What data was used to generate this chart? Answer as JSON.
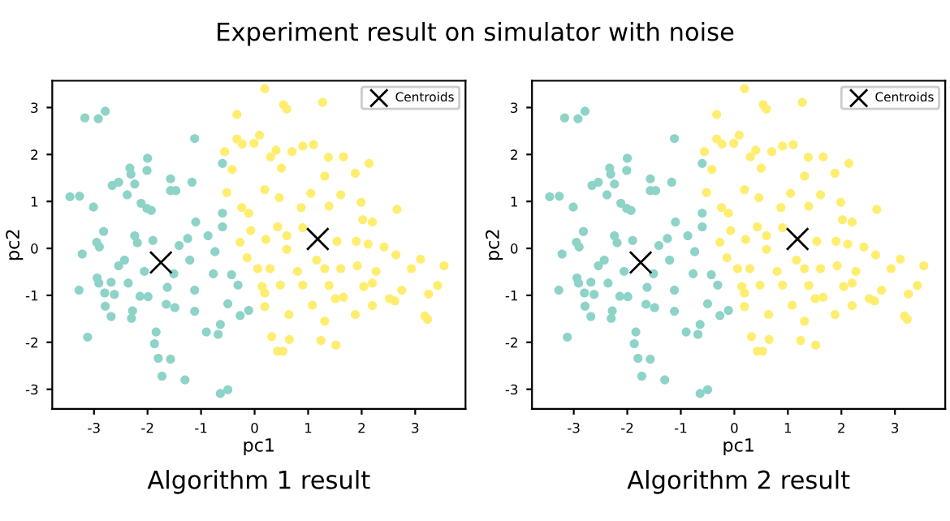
{
  "chart_data": [
    {
      "type": "scatter",
      "title": "Experiment result on simulator with noise",
      "xlabel": "pc1",
      "ylabel": "pc2",
      "annotations": [
        "Algorithm 1 result"
      ],
      "xlim": [
        -3.78,
        3.94
      ],
      "ylim": [
        -3.42,
        3.57
      ],
      "xticks": [
        -3,
        -2,
        -1,
        0,
        1,
        2,
        3
      ],
      "yticks": [
        -3,
        -2,
        -1,
        0,
        1,
        2,
        3
      ],
      "grid": false,
      "legend": "top right",
      "series": [
        {
          "color": "#8dd3c7",
          "marker": "circle",
          "x": [
            -3.45,
            -3.27,
            -3.17,
            -2.92,
            -2.79,
            -3.01,
            -3.22,
            -3.28,
            -3.12,
            -2.95,
            -2.9,
            -2.82,
            -2.94,
            -2.91,
            -2.8,
            -2.79,
            -2.68,
            -2.68,
            -2.62,
            -2.66,
            -2.54,
            -2.38,
            -2.54,
            -2.43,
            -2.36,
            -2.28,
            -2.3,
            -2.33,
            -2.31,
            -2.24,
            -2.0,
            -2.01,
            -2.12,
            -2.01,
            -1.93,
            -2.24,
            -2.19,
            -2.06,
            -2.14,
            -1.99,
            -1.9,
            -1.84,
            -1.87,
            -1.8,
            -1.57,
            -1.73,
            -1.3,
            -1.63,
            -1.65,
            -1.49,
            -1.51,
            -1.57,
            -1.57,
            -1.47,
            -1.41,
            -1.25,
            -1.21,
            -1.17,
            -1.12,
            -1.1,
            -1.12,
            -1.12,
            -0.87,
            -0.9,
            -0.77,
            -0.68,
            -0.64,
            -0.6,
            -0.6,
            -0.6,
            -0.64,
            -0.5,
            -0.5,
            -0.43,
            -0.27,
            -0.31,
            -0.11,
            -0.74
          ],
          "values": [
            1.1,
            1.11,
            2.78,
            2.76,
            2.92,
            0.88,
            -0.12,
            -0.89,
            -1.89,
            0.13,
            0.03,
            0.36,
            -0.63,
            -0.74,
            -0.95,
            -1.23,
            -1.45,
            -0.72,
            -0.98,
            1.34,
            1.41,
            1.14,
            -0.37,
            -0.25,
            -0.74,
            -1.33,
            -1.49,
            1.71,
            1.58,
            1.37,
            1.92,
            1.66,
            0.96,
            0.85,
            0.81,
            0.27,
            0.12,
            -0.49,
            -1.02,
            -1.03,
            0.17,
            -1.78,
            -2.03,
            -2.34,
            -2.36,
            -2.72,
            -2.8,
            -0.83,
            -1.19,
            -1.26,
            -0.54,
            1.48,
            1.23,
            1.23,
            0.06,
            0.21,
            -0.25,
            1.41,
            2.34,
            0.56,
            -0.89,
            -1.34,
            0.27,
            -1.78,
            -0.54,
            -1.83,
            -1.62,
            1.81,
            0.75,
            0.46,
            -3.09,
            -3.01,
            -1.18,
            -0.56,
            -1.43,
            -0.78,
            -1.32,
            -0.07
          ]
        },
        {
          "color": "#ffed6f",
          "marker": "circle",
          "x": [
            0.19,
            0.54,
            0.6,
            1.27,
            -0.33,
            -0.33,
            -0.23,
            -0.01,
            0.09,
            -0.56,
            -0.42,
            0.3,
            0.4,
            0.5,
            0.7,
            0.9,
            1.1,
            1.38,
            1.66,
            1.88,
            2.14,
            1.31,
            0.19,
            -0.52,
            -0.24,
            -0.11,
            0.46,
            0.87,
            1.05,
            1.39,
            1.61,
            1.99,
            2.02,
            2.2,
            2.66,
            -0.07,
            -0.27,
            0.21,
            0.43,
            0.6,
            0.9,
            1.54,
            1.9,
            2.42,
            -0.14,
            0.06,
            0.29,
            0.6,
            0.8,
            1.16,
            1.31,
            1.61,
            1.92,
            2.27,
            2.64,
            2.93,
            3.1,
            3.54,
            0.14,
            0.48,
            0.19,
            0.9,
            1.39,
            1.51,
            1.66,
            2.04,
            2.2,
            2.75,
            3.42,
            3.25,
            0.19,
            0.64,
            1.08,
            1.88,
            2.2,
            2.62,
            3.18,
            3.23,
            1.31,
            0.32,
            0.65,
            0.43,
            0.53,
            1.24,
            1.52,
            2.52,
            2.12
          ],
          "values": [
            3.4,
            3.06,
            2.97,
            3.11,
            2.85,
            2.33,
            2.22,
            2.24,
            2.41,
            2.06,
            1.68,
            1.95,
            2.09,
            1.71,
            2.06,
            2.18,
            2.21,
            1.94,
            1.95,
            1.6,
            1.81,
            1.54,
            1.25,
            1.19,
            0.87,
            0.75,
            1.08,
            0.87,
            1.17,
            0.9,
            1.14,
            0.98,
            0.61,
            0.56,
            0.83,
            0.38,
            0.13,
            0.19,
            0.46,
            0.27,
            0.44,
            0.15,
            0.15,
            0.03,
            -0.2,
            -0.43,
            -0.43,
            -0.02,
            -0.49,
            -0.25,
            -0.43,
            -0.43,
            -0.37,
            -0.49,
            -0.14,
            -0.43,
            -0.23,
            -0.37,
            -0.81,
            -0.78,
            -0.95,
            -0.78,
            -0.79,
            -1.07,
            -1.04,
            -0.81,
            -0.74,
            -0.89,
            -0.79,
            -0.97,
            -1.24,
            -1.41,
            -1.21,
            -1.41,
            -1.22,
            -1.12,
            -1.44,
            -1.51,
            -1.55,
            -1.88,
            -1.94,
            -2.19,
            -2.19,
            -1.96,
            -2.06,
            -1.07,
            0.09
          ]
        },
        {
          "name": "Centroids",
          "color": "#000000",
          "marker": "cross",
          "x": [
            -1.75,
            1.18
          ],
          "values": [
            -0.3,
            0.2
          ]
        }
      ]
    },
    {
      "type": "scatter",
      "xlabel": "pc1",
      "ylabel": "pc2",
      "annotations": [
        "Algorithm 2 result"
      ],
      "xlim": [
        -3.78,
        3.94
      ],
      "ylim": [
        -3.42,
        3.57
      ],
      "xticks": [
        -3,
        -2,
        -1,
        0,
        1,
        2,
        3
      ],
      "yticks": [
        -3,
        -2,
        -1,
        0,
        1,
        2,
        3
      ],
      "grid": false,
      "legend": "top right",
      "series": [
        {
          "color": "#8dd3c7",
          "marker": "circle",
          "x": [
            -3.45,
            -3.27,
            -3.17,
            -2.92,
            -2.79,
            -3.01,
            -3.22,
            -3.28,
            -3.12,
            -2.95,
            -2.9,
            -2.82,
            -2.94,
            -2.91,
            -2.8,
            -2.79,
            -2.68,
            -2.68,
            -2.62,
            -2.66,
            -2.54,
            -2.38,
            -2.54,
            -2.43,
            -2.36,
            -2.28,
            -2.3,
            -2.33,
            -2.31,
            -2.24,
            -2.0,
            -2.01,
            -2.12,
            -2.01,
            -1.93,
            -2.24,
            -2.19,
            -2.06,
            -2.14,
            -1.99,
            -1.9,
            -1.84,
            -1.87,
            -1.8,
            -1.57,
            -1.73,
            -1.3,
            -1.63,
            -1.65,
            -1.49,
            -1.51,
            -1.57,
            -1.57,
            -1.47,
            -1.41,
            -1.25,
            -1.21,
            -1.17,
            -1.12,
            -1.1,
            -1.12,
            -1.12,
            -0.87,
            -0.9,
            -0.77,
            -0.68,
            -0.64,
            -0.6,
            -0.6,
            -0.6,
            -0.64,
            -0.5,
            -0.5,
            -0.43,
            -0.27,
            -0.31,
            -0.11,
            -0.74
          ],
          "values": [
            1.1,
            1.11,
            2.78,
            2.76,
            2.92,
            0.88,
            -0.12,
            -0.89,
            -1.89,
            0.13,
            0.03,
            0.36,
            -0.63,
            -0.74,
            -0.95,
            -1.23,
            -1.45,
            -0.72,
            -0.98,
            1.34,
            1.41,
            1.14,
            -0.37,
            -0.25,
            -0.74,
            -1.33,
            -1.49,
            1.71,
            1.58,
            1.37,
            1.92,
            1.66,
            0.96,
            0.85,
            0.81,
            0.27,
            0.12,
            -0.49,
            -1.02,
            -1.03,
            0.17,
            -1.78,
            -2.03,
            -2.34,
            -2.36,
            -2.72,
            -2.8,
            -0.83,
            -1.19,
            -1.26,
            -0.54,
            1.48,
            1.23,
            1.23,
            0.06,
            0.21,
            -0.25,
            1.41,
            2.34,
            0.56,
            -0.89,
            -1.34,
            0.27,
            -1.78,
            -0.54,
            -1.83,
            -1.62,
            1.81,
            0.75,
            0.46,
            -3.09,
            -3.01,
            -1.18,
            -0.56,
            -1.43,
            -0.78,
            -1.32,
            -0.07
          ]
        },
        {
          "color": "#ffed6f",
          "marker": "circle",
          "x": [
            0.19,
            0.54,
            0.6,
            1.27,
            -0.33,
            -0.33,
            -0.23,
            -0.01,
            0.09,
            -0.56,
            -0.42,
            0.3,
            0.4,
            0.5,
            0.7,
            0.9,
            1.1,
            1.38,
            1.66,
            1.88,
            2.14,
            1.31,
            0.19,
            -0.52,
            -0.24,
            -0.11,
            0.46,
            0.87,
            1.05,
            1.39,
            1.61,
            1.99,
            2.02,
            2.2,
            2.66,
            -0.07,
            -0.27,
            0.21,
            0.43,
            0.6,
            0.9,
            1.54,
            1.9,
            2.42,
            -0.14,
            0.06,
            0.29,
            0.6,
            0.8,
            1.16,
            1.31,
            1.61,
            1.92,
            2.27,
            2.64,
            2.93,
            3.1,
            3.54,
            0.14,
            0.48,
            0.19,
            0.9,
            1.39,
            1.51,
            1.66,
            2.04,
            2.2,
            2.75,
            3.42,
            3.25,
            0.19,
            0.64,
            1.08,
            1.88,
            2.2,
            2.62,
            3.18,
            3.23,
            1.31,
            0.32,
            0.65,
            0.43,
            0.53,
            1.24,
            1.52,
            2.52,
            2.12
          ],
          "values": [
            3.4,
            3.06,
            2.97,
            3.11,
            2.85,
            2.33,
            2.22,
            2.24,
            2.41,
            2.06,
            1.68,
            1.95,
            2.09,
            1.71,
            2.06,
            2.18,
            2.21,
            1.94,
            1.95,
            1.6,
            1.81,
            1.54,
            1.25,
            1.19,
            0.87,
            0.75,
            1.08,
            0.87,
            1.17,
            0.9,
            1.14,
            0.98,
            0.61,
            0.56,
            0.83,
            0.38,
            0.13,
            0.19,
            0.46,
            0.27,
            0.44,
            0.15,
            0.15,
            0.03,
            -0.2,
            -0.43,
            -0.43,
            -0.02,
            -0.49,
            -0.25,
            -0.43,
            -0.43,
            -0.37,
            -0.49,
            -0.14,
            -0.43,
            -0.23,
            -0.37,
            -0.81,
            -0.78,
            -0.95,
            -0.78,
            -0.79,
            -1.07,
            -1.04,
            -0.81,
            -0.74,
            -0.89,
            -0.79,
            -0.97,
            -1.24,
            -1.41,
            -1.21,
            -1.41,
            -1.22,
            -1.12,
            -1.44,
            -1.51,
            -1.55,
            -1.88,
            -1.94,
            -2.19,
            -2.19,
            -1.96,
            -2.06,
            -1.07,
            0.09
          ]
        },
        {
          "name": "Centroids",
          "color": "#000000",
          "marker": "cross",
          "x": [
            -1.75,
            1.18
          ],
          "values": [
            -0.3,
            0.2
          ]
        }
      ]
    }
  ]
}
